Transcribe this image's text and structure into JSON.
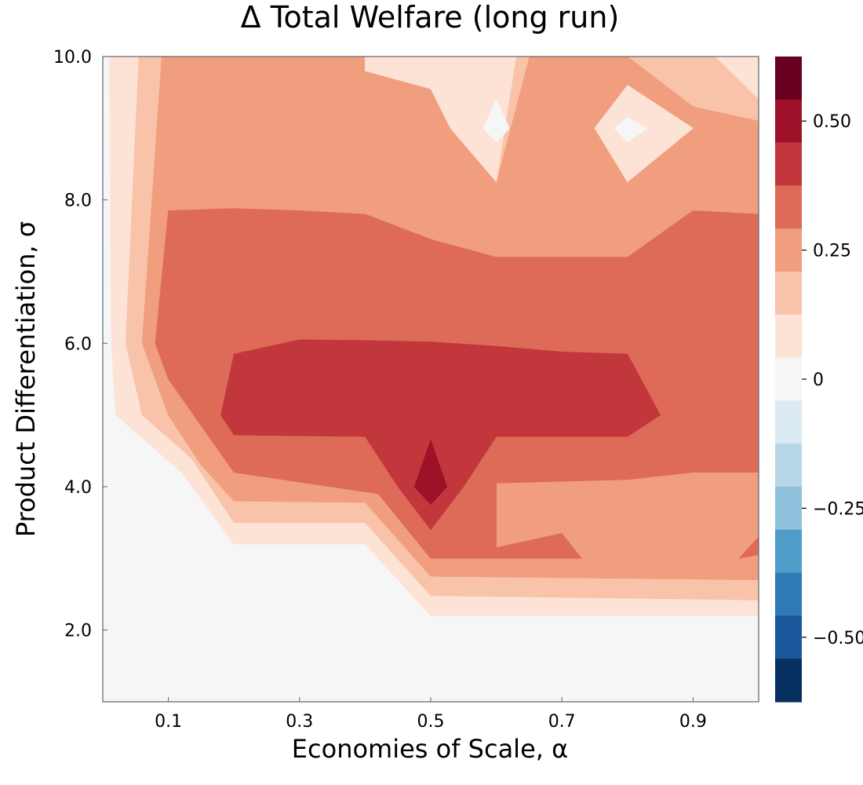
{
  "chart_data": {
    "type": "heatmap",
    "subtype": "filled-contour",
    "title": "Δ Total Welfare (long run)",
    "xlabel": "Economies of Scale, α",
    "ylabel": "Product Differentiation, σ",
    "xlim": [
      0.0,
      1.0
    ],
    "ylim": [
      1.0,
      10.0
    ],
    "x_ticks": [
      0.1,
      0.3,
      0.5,
      0.7,
      0.9
    ],
    "x_tick_labels": [
      "0.1",
      "0.3",
      "0.5",
      "0.7",
      "0.9"
    ],
    "y_ticks": [
      2.0,
      4.0,
      6.0,
      8.0,
      10.0
    ],
    "y_tick_labels": [
      "2.0",
      "4.0",
      "6.0",
      "8.0",
      "10.0"
    ],
    "grid": false,
    "colorbar": {
      "range": [
        -0.625,
        0.625
      ],
      "ticks": [
        0.5,
        0.25,
        0,
        -0.25,
        -0.5
      ],
      "tick_labels": [
        "0.50",
        "0.25",
        "0",
        "−0.25",
        "−0.50"
      ],
      "colors": [
        "#690020",
        "#9e1229",
        "#c2373c",
        "#dd6b57",
        "#f09e7d",
        "#f8c3a8",
        "#fde2d6",
        "#f6f6f6",
        "#dbe9f2",
        "#b7d7e9",
        "#8fc1dd",
        "#509dc9",
        "#2f79b5",
        "#1a579b",
        "#072f60"
      ]
    },
    "contour_levels": [
      {
        "min": 0.0,
        "max": 0.05,
        "color": "#f6f6f6"
      },
      {
        "min": 0.05,
        "max": 0.15,
        "color": "#fde2d6"
      },
      {
        "min": 0.15,
        "max": 0.2,
        "color": "#f8c3a8"
      },
      {
        "min": 0.2,
        "max": 0.3,
        "color": "#f09e7d"
      },
      {
        "min": 0.3,
        "max": 0.4,
        "color": "#dd6b57"
      },
      {
        "min": 0.4,
        "max": 0.45,
        "color": "#c2373c"
      },
      {
        "min": 0.45,
        "max": 0.55,
        "color": "#9e1229"
      }
    ],
    "regions": [
      {
        "color": "#fde2d6",
        "points": [
          [
            0.01,
            10
          ],
          [
            0.967,
            10
          ],
          [
            1,
            9.55
          ],
          [
            1,
            2.2
          ],
          [
            0.5,
            2.2
          ],
          [
            0.4,
            3.2
          ],
          [
            0.2,
            3.2
          ],
          [
            0.12,
            4.2
          ],
          [
            0.02,
            5.0
          ],
          [
            0.013,
            6.0
          ]
        ]
      },
      {
        "color": "#f8c3a8",
        "points": [
          [
            0.055,
            10
          ],
          [
            0.933,
            10
          ],
          [
            1,
            9.4
          ],
          [
            1,
            2.42
          ],
          [
            0.5,
            2.48
          ],
          [
            0.4,
            3.5
          ],
          [
            0.2,
            3.5
          ],
          [
            0.135,
            4.4
          ],
          [
            0.06,
            5.0
          ],
          [
            0.035,
            6.0
          ]
        ]
      },
      {
        "color": "#f09e7d",
        "points": [
          [
            0.09,
            10
          ],
          [
            0.8,
            10
          ],
          [
            0.9,
            9.3
          ],
          [
            1,
            9.1
          ],
          [
            1,
            2.7
          ],
          [
            0.5,
            2.75
          ],
          [
            0.4,
            3.78
          ],
          [
            0.2,
            3.8
          ],
          [
            0.15,
            4.3
          ],
          [
            0.1,
            5.0
          ],
          [
            0.06,
            6.0
          ]
        ]
      },
      {
        "color": "#dd6b57",
        "points": [
          [
            0.1,
            7.85
          ],
          [
            0.2,
            7.88
          ],
          [
            0.3,
            7.85
          ],
          [
            0.4,
            7.8
          ],
          [
            0.5,
            7.45
          ],
          [
            0.6,
            7.2
          ],
          [
            0.8,
            7.2
          ],
          [
            0.9,
            7.85
          ],
          [
            1,
            7.8
          ],
          [
            1,
            3.05
          ],
          [
            0.97,
            3.0
          ],
          [
            1,
            3.3
          ],
          [
            1,
            4.2
          ],
          [
            0.9,
            4.2
          ],
          [
            0.8,
            4.1
          ],
          [
            0.6,
            4.05
          ],
          [
            0.6,
            3.15
          ],
          [
            0.7,
            3.35
          ],
          [
            0.73,
            3.0
          ],
          [
            0.5,
            3.0
          ],
          [
            0.42,
            3.9
          ],
          [
            0.2,
            4.2
          ],
          [
            0.1,
            5.5
          ],
          [
            0.08,
            6.0
          ]
        ]
      },
      {
        "color": "#c2373c",
        "points": [
          [
            0.2,
            5.85
          ],
          [
            0.3,
            6.05
          ],
          [
            0.4,
            6.04
          ],
          [
            0.5,
            6.02
          ],
          [
            0.6,
            5.96
          ],
          [
            0.7,
            5.88
          ],
          [
            0.8,
            5.85
          ],
          [
            0.85,
            5.0
          ],
          [
            0.8,
            4.7
          ],
          [
            0.6,
            4.7
          ],
          [
            0.55,
            4.0
          ],
          [
            0.5,
            3.4
          ],
          [
            0.45,
            4.0
          ],
          [
            0.4,
            4.7
          ],
          [
            0.2,
            4.72
          ],
          [
            0.18,
            5.0
          ]
        ]
      },
      {
        "color": "#9e1229",
        "points": [
          [
            0.5,
            4.65
          ],
          [
            0.525,
            4.0
          ],
          [
            0.5,
            3.75
          ],
          [
            0.475,
            4.0
          ]
        ]
      },
      {
        "color": "#f8c3a8",
        "points": [
          [
            0.4,
            10
          ],
          [
            0.65,
            10
          ],
          [
            0.6,
            8.25
          ],
          [
            0.55,
            9.0
          ],
          [
            0.52,
            9.6
          ],
          [
            0.4,
            9.8
          ]
        ]
      },
      {
        "color": "#fde2d6",
        "points": [
          [
            0.4,
            10
          ],
          [
            0.63,
            10
          ],
          [
            0.6,
            8.25
          ],
          [
            0.53,
            9.0
          ],
          [
            0.5,
            9.55
          ],
          [
            0.4,
            9.8
          ]
        ]
      },
      {
        "color": "#f6f6f6",
        "points": [
          [
            0.6,
            9.4
          ],
          [
            0.62,
            9.0
          ],
          [
            0.6,
            8.8
          ],
          [
            0.58,
            9.0
          ]
        ]
      },
      {
        "color": "#f09e7d",
        "points": [
          [
            0.7,
            9.8
          ],
          [
            0.72,
            9.0
          ],
          [
            0.7,
            8.5
          ],
          [
            0.68,
            9.0
          ]
        ]
      },
      {
        "color": "#fde2d6",
        "points": [
          [
            0.8,
            9.6
          ],
          [
            0.9,
            9.0
          ],
          [
            0.8,
            8.25
          ],
          [
            0.75,
            9.0
          ]
        ]
      },
      {
        "color": "#f6f6f6",
        "points": [
          [
            0.8,
            9.15
          ],
          [
            0.83,
            9.0
          ],
          [
            0.8,
            8.8
          ],
          [
            0.78,
            9.0
          ]
        ]
      },
      {
        "color": "#fde2d6",
        "points": [
          [
            0.95,
            10
          ],
          [
            1,
            10
          ],
          [
            1,
            9.55
          ]
        ]
      }
    ]
  }
}
